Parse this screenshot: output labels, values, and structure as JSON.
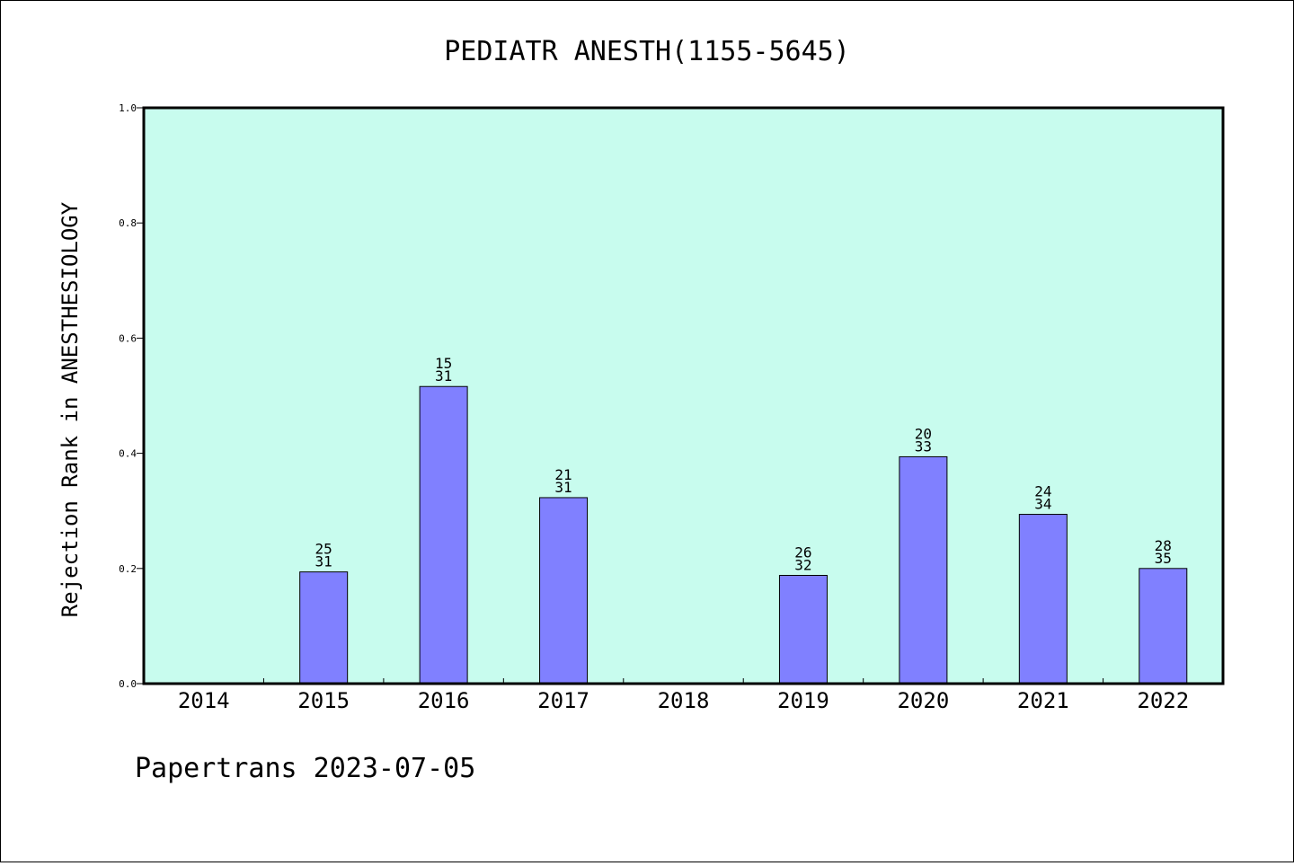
{
  "footer_text": "Papertrans 2023-07-05",
  "colors": {
    "plot_background": "#c8fcee",
    "bar_fill": "#8080ff",
    "bar_stroke": "#000000"
  },
  "chart_data": {
    "type": "bar",
    "title": "PEDIATR ANESTH(1155-5645)",
    "xlabel": "",
    "ylabel": "Rejection Rank in ANESTHESIOLOGY",
    "ylim": [
      0,
      1.0
    ],
    "yticks": [
      "0.0",
      "0.2",
      "0.4",
      "0.6",
      "0.8",
      "1.0"
    ],
    "grid": false,
    "categories": [
      "2014",
      "2015",
      "2016",
      "2017",
      "2018",
      "2019",
      "2020",
      "2021",
      "2022"
    ],
    "values": [
      null,
      0.194,
      0.516,
      0.323,
      null,
      0.188,
      0.394,
      0.294,
      0.2
    ],
    "labels_top": [
      null,
      "25",
      "15",
      "21",
      null,
      "26",
      "20",
      "24",
      "28"
    ],
    "labels_bottom": [
      null,
      "31",
      "31",
      "31",
      null,
      "32",
      "33",
      "34",
      "35"
    ]
  }
}
